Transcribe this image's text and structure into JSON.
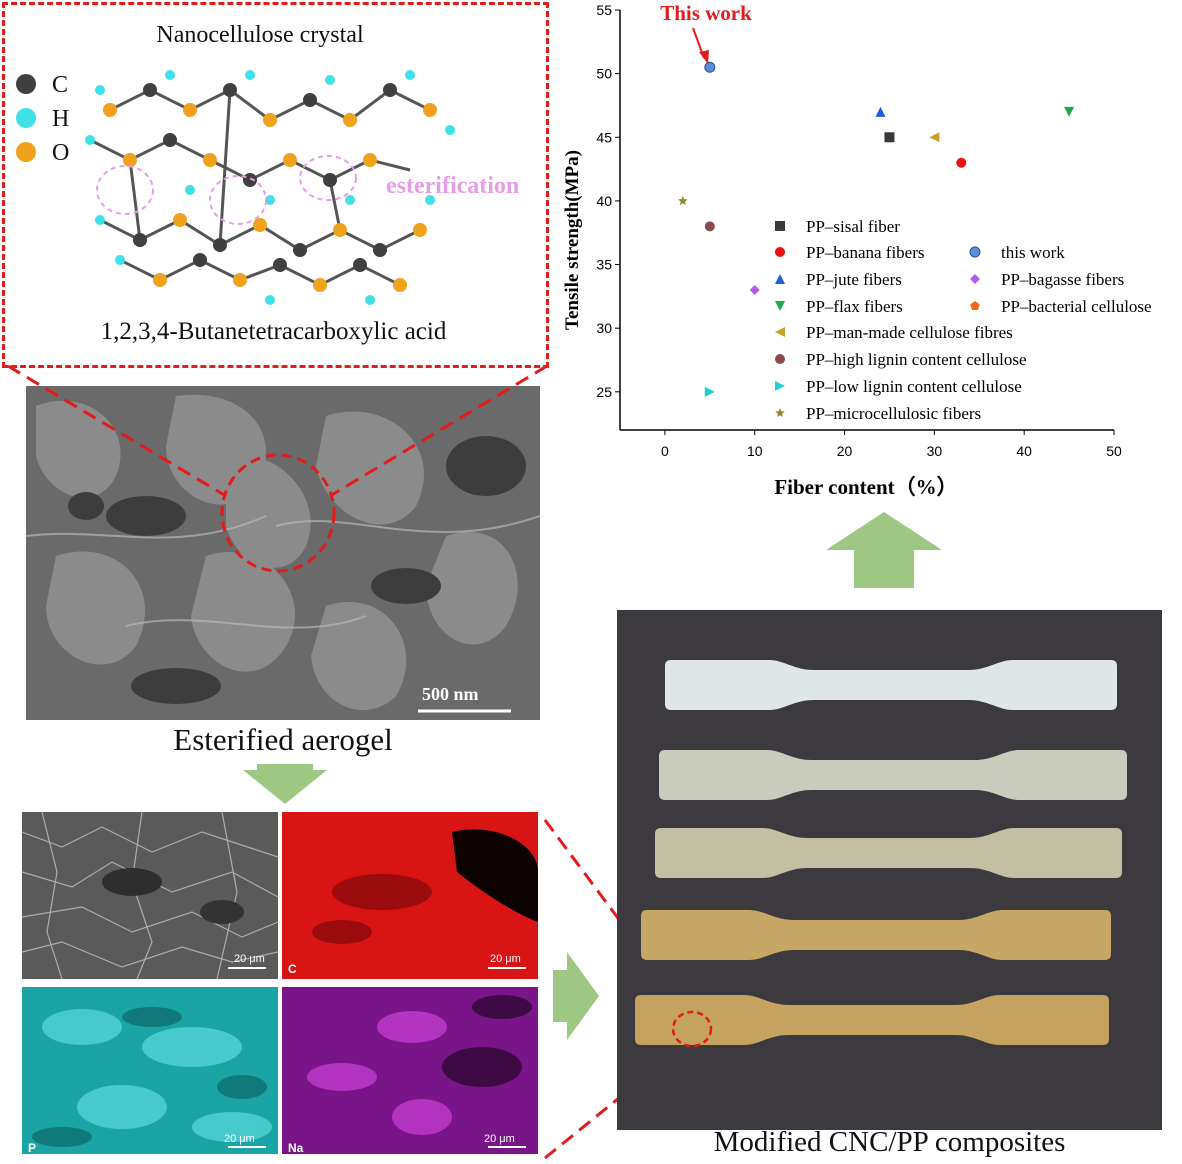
{
  "molecule": {
    "title": "Nanocellulose crystal",
    "subtitle": "1,2,3,4-Butanetetracarboxylic acid",
    "annotation": "esterification",
    "legend": [
      {
        "symbol": "C",
        "color": "#404040"
      },
      {
        "symbol": "H",
        "color": "#3fe0e6"
      },
      {
        "symbol": "O",
        "color": "#f0a21c"
      }
    ]
  },
  "sem": {
    "scale_label": "500 nm",
    "caption": "Esterified aerogel"
  },
  "eds_maps": [
    {
      "label": "",
      "scale": "20 μm",
      "color": "#9a9a9a"
    },
    {
      "label": "C",
      "scale": "20 μm",
      "color": "#e21414"
    },
    {
      "label": "P",
      "scale": "20 μm",
      "color": "#1fb6b6"
    },
    {
      "label": "Na",
      "scale": "20 μm",
      "color": "#a11ab5"
    }
  ],
  "photo": {
    "caption": "Modified CNC/PP composites",
    "bars": [
      "#dfe7e6",
      "#c9cbbd",
      "#c3bfa3",
      "#c6a766",
      "#c4a25f"
    ]
  },
  "chart_data": {
    "type": "scatter",
    "xlabel": "Fiber content（%）",
    "ylabel": "Tensile strength(MPa)",
    "xlim": [
      -5,
      50
    ],
    "ylim": [
      22,
      55
    ],
    "xticks": [
      0,
      10,
      20,
      30,
      40,
      50
    ],
    "yticks": [
      25,
      30,
      35,
      40,
      45,
      50,
      55
    ],
    "annotation": "This work",
    "series": [
      {
        "name": "PP–sisal fiber",
        "marker": "square",
        "color": "#3a3a3a",
        "points": [
          [
            25,
            45
          ]
        ]
      },
      {
        "name": "PP–banana fibers",
        "marker": "circle",
        "color": "#ee1111",
        "points": [
          [
            33,
            43
          ]
        ]
      },
      {
        "name": "this work",
        "marker": "sphere",
        "color": "#5b8fd8",
        "points": [
          [
            5,
            50.5
          ]
        ]
      },
      {
        "name": "PP–jute fibers",
        "marker": "triangle-up",
        "color": "#1e5fe0",
        "points": [
          [
            24,
            47
          ]
        ]
      },
      {
        "name": "PP–bagasse fibers",
        "marker": "diamond",
        "color": "#b45ce8",
        "points": [
          [
            10,
            33
          ]
        ]
      },
      {
        "name": "PP–flax fibers",
        "marker": "triangle-down",
        "color": "#1fa84a",
        "points": [
          [
            45,
            47
          ]
        ]
      },
      {
        "name": "PP–bacterial cellulose",
        "marker": "pentagon",
        "color": "#f06a16",
        "points": []
      },
      {
        "name": "PP–man-made cellulose fibres",
        "marker": "triangle-left",
        "color": "#c9a128",
        "points": [
          [
            30,
            45
          ]
        ]
      },
      {
        "name": "PP–high lignin content cellulose",
        "marker": "circle",
        "color": "#8a4a4a",
        "points": [
          [
            5,
            38
          ]
        ]
      },
      {
        "name": "PP–low lignin content cellulose",
        "marker": "triangle-right",
        "color": "#1ed0d6",
        "points": [
          [
            5,
            25
          ]
        ]
      },
      {
        "name": "PP–microcellulosic fibers",
        "marker": "star",
        "color": "#8c8a2a",
        "points": [
          [
            2,
            40
          ]
        ]
      }
    ]
  }
}
